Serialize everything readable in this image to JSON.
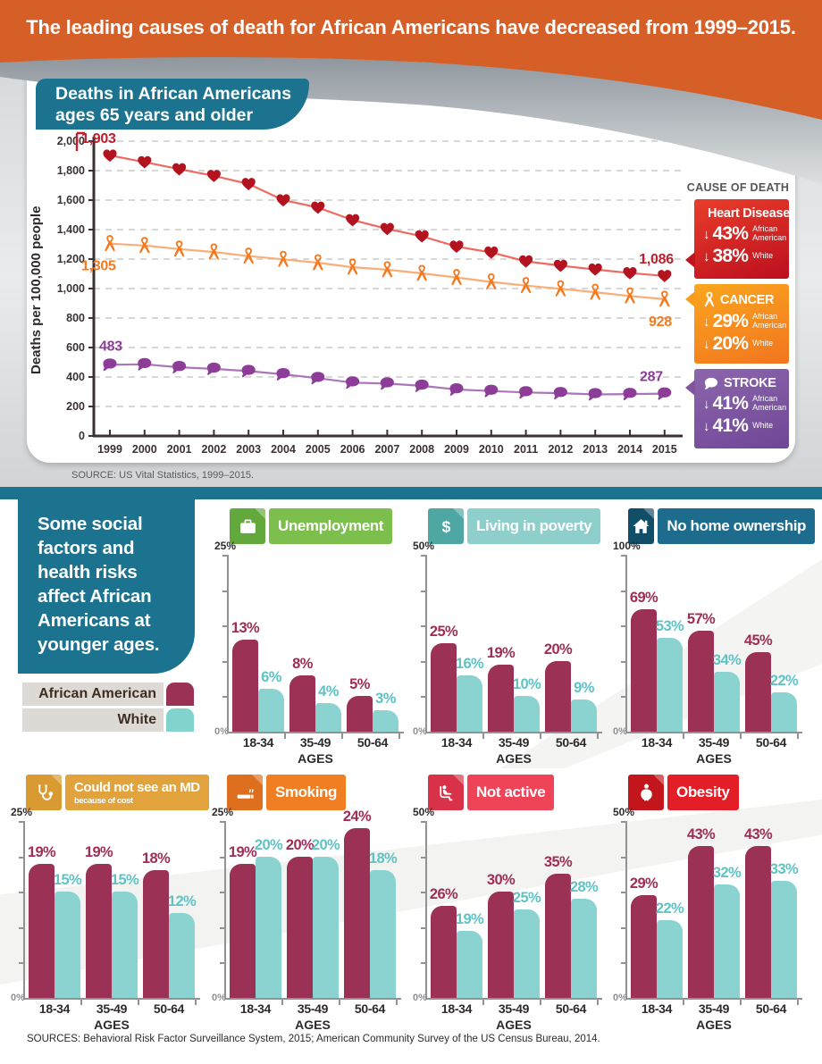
{
  "banner": {
    "title": "The leading causes of death for African Americans have decreased from 1999–2015."
  },
  "mortality": {
    "header_line1": "Deaths in African Americans",
    "header_line2": "ages 65 years and older",
    "ylabel": "Deaths per 100,000 people",
    "legend_title": "CAUSE OF DEATH",
    "legend": [
      {
        "name": "Heart Disease",
        "icon": "heart",
        "aa_decline": "43%",
        "aa_label": "African American",
        "white_decline": "38%",
        "white_label": "White"
      },
      {
        "name": "CANCER",
        "icon": "ribbon",
        "aa_decline": "29%",
        "aa_label": "African American",
        "white_decline": "20%",
        "white_label": "White"
      },
      {
        "name": "STROKE",
        "icon": "brain",
        "aa_decline": "41%",
        "aa_label": "African American",
        "white_decline": "41%",
        "white_label": "White"
      }
    ],
    "source": "SOURCE: US Vital Statistics, 1999–2015."
  },
  "social": {
    "intro": "Some social factors and health risks affect African Americans at younger ages.",
    "legend": [
      {
        "label": "African American"
      },
      {
        "label": "White"
      }
    ],
    "sources": "SOURCES: Behavioral Risk Factor Surveillance System, 2015; American Community Survey of the US Census Bureau, 2014."
  },
  "icons": {
    "down_arrow": "↓"
  },
  "colors": {
    "banner_orange": "#D55F27",
    "teal": "#1B7390",
    "aa_bar": "#9C3156",
    "aa_label": "#A12D56",
    "white_bar": "#8BD3D0",
    "white_label": "#5FC3C5",
    "heart_red": "#B2131F",
    "cancer_orange": "#F4791F",
    "stroke_purple": "#8D3D98"
  },
  "chart_data": [
    {
      "id": "mortality",
      "type": "line",
      "title": "Deaths in African Americans ages 65 years and older",
      "xlabel": "",
      "ylabel": "Deaths per 100,000 people",
      "ylim": [
        0,
        2000
      ],
      "ytick_step": 200,
      "grid": true,
      "legend_position": "right",
      "ytick_labels": [
        "0",
        "200",
        "400",
        "600",
        "800",
        "1,000",
        "1,200",
        "1,400",
        "1,600",
        "1,800",
        "2,000"
      ],
      "x": [
        1999,
        2000,
        2001,
        2002,
        2003,
        2004,
        2005,
        2006,
        2007,
        2008,
        2009,
        2010,
        2011,
        2012,
        2013,
        2014,
        2015
      ],
      "series": [
        {
          "name": "Heart Disease",
          "icon": "heart",
          "marker_color": "#B2131F",
          "line_color": "#EE6A60",
          "label_color": "#BE1E2D",
          "values": [
            1903,
            1858,
            1810,
            1765,
            1710,
            1600,
            1550,
            1465,
            1405,
            1355,
            1285,
            1245,
            1185,
            1155,
            1130,
            1105,
            1086
          ],
          "start_label": "1,903",
          "end_label": "1,086"
        },
        {
          "name": "Cancer",
          "icon": "ribbon",
          "marker_color": "#F4791F",
          "line_color": "#F9AE77",
          "label_color": "#F4791F",
          "values": [
            1305,
            1292,
            1268,
            1248,
            1220,
            1198,
            1175,
            1145,
            1128,
            1103,
            1075,
            1045,
            1020,
            998,
            975,
            950,
            928
          ],
          "start_label": "1,305",
          "end_label": "928"
        },
        {
          "name": "Stroke",
          "icon": "brain",
          "marker_color": "#8D3D98",
          "line_color": "#AA76B8",
          "label_color": "#8D3D98",
          "values": [
            483,
            486,
            466,
            455,
            440,
            418,
            392,
            362,
            355,
            340,
            315,
            305,
            295,
            290,
            282,
            284,
            287
          ],
          "start_label": "483",
          "end_label": "287"
        }
      ]
    },
    {
      "id": "unemployment",
      "type": "bar",
      "title": "Unemployment",
      "subtitle": "",
      "icon": "briefcase",
      "header_color": "#7DBF4D",
      "icon_box_color": "#63A83C",
      "ymax": 25,
      "ymax_label": "25%",
      "ymin_label": "0%",
      "xlabel": "AGES",
      "categories": [
        "18-34",
        "35-49",
        "50-64"
      ],
      "series": [
        {
          "name": "African American",
          "values": [
            13,
            8,
            5
          ]
        },
        {
          "name": "White",
          "values": [
            6,
            4,
            3
          ]
        }
      ]
    },
    {
      "id": "poverty",
      "type": "bar",
      "title": "Living in poverty",
      "subtitle": "",
      "icon": "dollar",
      "header_color": "#8FCFCB",
      "icon_box_color": "#4FA7A3",
      "ymax": 50,
      "ymax_label": "50%",
      "ymin_label": "0%",
      "xlabel": "AGES",
      "categories": [
        "18-34",
        "35-49",
        "50-64"
      ],
      "series": [
        {
          "name": "African American",
          "values": [
            25,
            19,
            20
          ]
        },
        {
          "name": "White",
          "values": [
            16,
            10,
            9
          ]
        }
      ]
    },
    {
      "id": "home-ownership",
      "type": "bar",
      "title": "No home ownership",
      "subtitle": "",
      "icon": "house",
      "header_color": "#1D6C8D",
      "icon_box_color": "#114E68",
      "ymax": 100,
      "ymax_label": "100%",
      "ymin_label": "0%",
      "xlabel": "AGES",
      "categories": [
        "18-34",
        "35-49",
        "50-64"
      ],
      "series": [
        {
          "name": "African American",
          "values": [
            69,
            57,
            45
          ]
        },
        {
          "name": "White",
          "values": [
            53,
            34,
            22
          ]
        }
      ]
    },
    {
      "id": "no-md",
      "type": "bar",
      "title": "Could not see an MD",
      "subtitle": "because of cost",
      "icon": "stethoscope",
      "header_color": "#E2A33C",
      "icon_box_color": "#D89A31",
      "ymax": 25,
      "ymax_label": "25%",
      "ymin_label": "0%",
      "xlabel": "AGES",
      "categories": [
        "18-34",
        "35-49",
        "50-64"
      ],
      "series": [
        {
          "name": "African American",
          "values": [
            19,
            19,
            18
          ]
        },
        {
          "name": "White",
          "values": [
            15,
            15,
            12
          ]
        }
      ]
    },
    {
      "id": "smoking",
      "type": "bar",
      "title": "Smoking",
      "subtitle": "",
      "icon": "cigarette",
      "header_color": "#F07E23",
      "icon_box_color": "#DE6F1E",
      "ymax": 25,
      "ymax_label": "25%",
      "ymin_label": "0%",
      "xlabel": "AGES",
      "categories": [
        "18-34",
        "35-49",
        "50-64"
      ],
      "series": [
        {
          "name": "African American",
          "values": [
            19,
            20,
            24
          ]
        },
        {
          "name": "White",
          "values": [
            20,
            20,
            18
          ]
        }
      ]
    },
    {
      "id": "not-active",
      "type": "bar",
      "title": "Not active",
      "subtitle": "",
      "icon": "chair",
      "header_color": "#EF4458",
      "icon_box_color": "#D93148",
      "ymax": 50,
      "ymax_label": "50%",
      "ymin_label": "0%",
      "xlabel": "AGES",
      "categories": [
        "18-34",
        "35-49",
        "50-64"
      ],
      "series": [
        {
          "name": "African American",
          "values": [
            26,
            30,
            35
          ]
        },
        {
          "name": "White",
          "values": [
            19,
            25,
            28
          ]
        }
      ]
    },
    {
      "id": "obesity",
      "type": "bar",
      "title": "Obesity",
      "subtitle": "",
      "icon": "person",
      "header_color": "#E41E26",
      "icon_box_color": "#C3161C",
      "ymax": 50,
      "ymax_label": "50%",
      "ymin_label": "0%",
      "xlabel": "AGES",
      "categories": [
        "18-34",
        "35-49",
        "50-64"
      ],
      "series": [
        {
          "name": "African American",
          "values": [
            29,
            43,
            43
          ]
        },
        {
          "name": "White",
          "values": [
            22,
            32,
            33
          ]
        }
      ]
    }
  ]
}
